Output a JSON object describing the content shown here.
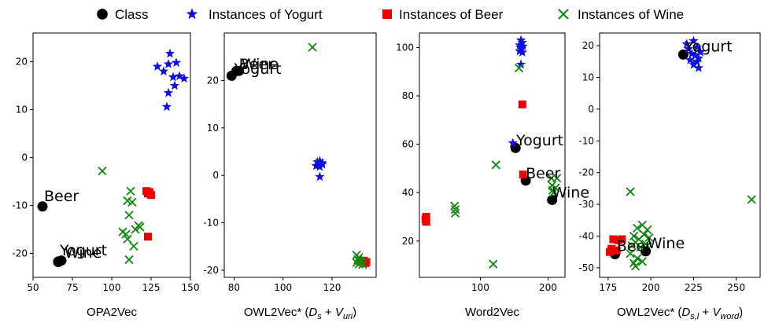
{
  "legend": {
    "entries": [
      {
        "label": "Class",
        "marker": "circle",
        "color": "#000000"
      },
      {
        "label": "Instances of  Yogurt",
        "marker": "star",
        "color": "#1010dd"
      },
      {
        "label": "Instances of  Beer",
        "marker": "square",
        "color": "#ee0000"
      },
      {
        "label": "Instances of  Wine",
        "marker": "x",
        "color": "#118811"
      }
    ]
  },
  "chart_data": [
    {
      "type": "scatter",
      "xlabel": "OPA2Vec",
      "xlim": [
        50,
        150
      ],
      "ylim": [
        -25,
        26
      ],
      "xticks": [
        50,
        75,
        100,
        125,
        150
      ],
      "yticks": [
        -20,
        -10,
        0,
        10,
        20
      ],
      "series": [
        {
          "name": "Class",
          "points": [
            [
              56,
              -10.2
            ],
            [
              66,
              -21.7
            ],
            [
              68,
              -21.5
            ],
            [
              66,
              -21.8
            ]
          ]
        },
        {
          "name": "Instances of  Yogurt",
          "points": [
            [
              137,
              21.7
            ],
            [
              141,
              19.8
            ],
            [
              136,
              19.5
            ],
            [
              129,
              19.0
            ],
            [
              133,
              18.0
            ],
            [
              143,
              17.0
            ],
            [
              146,
              16.5
            ],
            [
              139,
              16.8
            ],
            [
              140,
              15.0
            ],
            [
              136,
              13.5
            ],
            [
              135,
              10.6
            ]
          ]
        },
        {
          "name": "Instances of  Beer",
          "points": [
            [
              122,
              -7.0
            ],
            [
              124,
              -7.2
            ],
            [
              125,
              -7.8
            ],
            [
              123,
              -7.5
            ],
            [
              123,
              -16.5
            ]
          ]
        },
        {
          "name": "Instances of  Wine",
          "points": [
            [
              94,
              -2.8
            ],
            [
              112,
              -7.0
            ],
            [
              110,
              -9.0
            ],
            [
              113,
              -9.3
            ],
            [
              111,
              -12.0
            ],
            [
              117,
              -14.2
            ],
            [
              118,
              -14.5
            ],
            [
              115,
              -15.0
            ],
            [
              107,
              -15.5
            ],
            [
              109,
              -16.0
            ],
            [
              110,
              -17.0
            ],
            [
              114,
              -18.5
            ],
            [
              111,
              -21.3
            ]
          ]
        }
      ],
      "annotations": [
        {
          "text": "Beer",
          "x": 57,
          "y": -9.1
        },
        {
          "text": "Yogurt",
          "x": 67,
          "y": -20.4
        },
        {
          "text": "Wine",
          "x": 70,
          "y": -20.9
        }
      ]
    },
    {
      "type": "scatter",
      "xlabel": "OWL2Vec* (D_s + V_uri)",
      "xlabel_parts": [
        "OWL2Vec* (",
        "D",
        "s",
        " + ",
        "V",
        "uri",
        ")"
      ],
      "xlim": [
        76,
        138
      ],
      "ylim": [
        -21.5,
        30
      ],
      "xticks": [
        80,
        100,
        120
      ],
      "yticks": [
        -20,
        -10,
        0,
        10,
        20
      ],
      "series": [
        {
          "name": "Class",
          "points": [
            [
              79,
              21.0
            ],
            [
              82,
              22.0
            ],
            [
              81,
              22.0
            ]
          ]
        },
        {
          "name": "Instances of  Yogurt",
          "points": [
            [
              114,
              2.8
            ],
            [
              115,
              3.0
            ],
            [
              116,
              2.6
            ],
            [
              113.5,
              2.0
            ],
            [
              115,
              1.8
            ],
            [
              114.5,
              2.2
            ],
            [
              116,
              2.3
            ],
            [
              115,
              -0.3
            ]
          ]
        },
        {
          "name": "Instances of  Beer",
          "points": [
            [
              133,
              -18.0
            ],
            [
              134,
              -18.3
            ],
            [
              133.5,
              -18.5
            ]
          ]
        },
        {
          "name": "Instances of  Wine",
          "points": [
            [
              112,
              27.0
            ],
            [
              130,
              -16.8
            ],
            [
              131,
              -17.3
            ],
            [
              130.5,
              -17.8
            ],
            [
              131.5,
              -18.0
            ],
            [
              132,
              -18.2
            ],
            [
              130,
              -18.4
            ],
            [
              131,
              -18.7
            ],
            [
              132.5,
              -18.8
            ]
          ]
        }
      ],
      "annotations": [
        {
          "text": "Yogurt",
          "x": 80,
          "y": 21.4
        },
        {
          "text": "Wine",
          "x": 83,
          "y": 22.4
        },
        {
          "text": "Beer",
          "x": 82,
          "y": 22.4
        }
      ]
    },
    {
      "type": "scatter",
      "xlabel": "Word2Vec",
      "xlim": [
        10,
        225
      ],
      "ylim": [
        5,
        106
      ],
      "xticks": [
        100,
        200
      ],
      "yticks": [
        20,
        40,
        60,
        80,
        100
      ],
      "series": [
        {
          "name": "Class",
          "points": [
            [
              152,
              58.5
            ],
            [
              167,
              45.0
            ],
            [
              206,
              37.0
            ]
          ]
        },
        {
          "name": "Instances of  Yogurt",
          "points": [
            [
              160,
              103.0
            ],
            [
              162,
              102.0
            ],
            [
              158,
              101.0
            ],
            [
              163,
              100.5
            ],
            [
              159,
              100.0
            ],
            [
              161,
              99.5
            ],
            [
              158,
              98.5
            ],
            [
              162,
              98.0
            ],
            [
              160,
              93.0
            ],
            [
              148,
              60.5
            ]
          ]
        },
        {
          "name": "Instances of  Beer",
          "points": [
            [
              162,
              76.5
            ],
            [
              163,
              47.5
            ],
            [
              20,
              30.0
            ],
            [
              19,
              29.0
            ],
            [
              20,
              28.0
            ]
          ]
        },
        {
          "name": "Instances of  Wine",
          "points": [
            [
              157,
              91.5
            ],
            [
              123,
              51.5
            ],
            [
              205,
              46.0
            ],
            [
              213,
              46.0
            ],
            [
              206,
              43.0
            ],
            [
              207,
              41.0
            ],
            [
              211,
              42.0
            ],
            [
              208,
              40.0
            ],
            [
              62,
              34.5
            ],
            [
              63,
              33.0
            ],
            [
              63,
              31.5
            ],
            [
              119,
              10.5
            ]
          ]
        }
      ],
      "annotations": [
        {
          "text": "Yogurt",
          "x": 153,
          "y": 59.5
        },
        {
          "text": "Beer",
          "x": 167,
          "y": 46.0
        },
        {
          "text": "Wine",
          "x": 206,
          "y": 38.0
        }
      ]
    },
    {
      "type": "scatter",
      "xlabel": "OWL2Vec* (D_s,l + V_word)",
      "xlabel_parts": [
        "OWL2Vec* (",
        "D",
        "s,l",
        " + ",
        "V",
        "word",
        ")"
      ],
      "xlim": [
        170,
        264
      ],
      "ylim": [
        -53,
        24
      ],
      "xticks": [
        175,
        200,
        225,
        250
      ],
      "yticks": [
        -50,
        -40,
        -30,
        -20,
        -10,
        0,
        10,
        20
      ],
      "series": [
        {
          "name": "Class",
          "points": [
            [
              219,
              17.2
            ],
            [
              179,
              -45.7
            ],
            [
              197,
              -44.8
            ]
          ]
        },
        {
          "name": "Instances of  Yogurt",
          "points": [
            [
              225,
              21.5
            ],
            [
              221,
              20.5
            ],
            [
              227,
              19.5
            ],
            [
              222,
              19.0
            ],
            [
              229,
              18.0
            ],
            [
              224,
              17.5
            ],
            [
              226,
              17.0
            ],
            [
              228,
              16.0
            ],
            [
              223,
              15.5
            ],
            [
              227,
              15.0
            ],
            [
              225,
              14.0
            ],
            [
              228,
              13.0
            ]
          ]
        },
        {
          "name": "Instances of  Beer",
          "points": [
            [
              178,
              -41.0
            ],
            [
              181,
              -41.3
            ],
            [
              183,
              -41.0
            ],
            [
              177,
              -44.0
            ],
            [
              180,
              -44.5
            ],
            [
              176,
              -45.0
            ]
          ]
        },
        {
          "name": "Instances of  Wine",
          "points": [
            [
              188,
              -26.0
            ],
            [
              259,
              -28.5
            ],
            [
              195,
              -36.5
            ],
            [
              192,
              -37.5
            ],
            [
              198,
              -38.0
            ],
            [
              196,
              -39.5
            ],
            [
              190,
              -40.0
            ],
            [
              199,
              -40.5
            ],
            [
              193,
              -41.0
            ],
            [
              191,
              -42.0
            ],
            [
              197,
              -42.5
            ],
            [
              189,
              -43.0
            ],
            [
              194,
              -43.5
            ],
            [
              188,
              -45.5
            ],
            [
              192,
              -47.0
            ],
            [
              190,
              -48.5
            ],
            [
              195,
              -48.0
            ],
            [
              191,
              -49.5
            ]
          ]
        }
      ],
      "annotations": [
        {
          "text": "Yogurt",
          "x": 220,
          "y": 18.2
        },
        {
          "text": "Beer",
          "x": 180,
          "y": -44.7
        },
        {
          "text": "Wine",
          "x": 198,
          "y": -43.8
        }
      ]
    }
  ]
}
